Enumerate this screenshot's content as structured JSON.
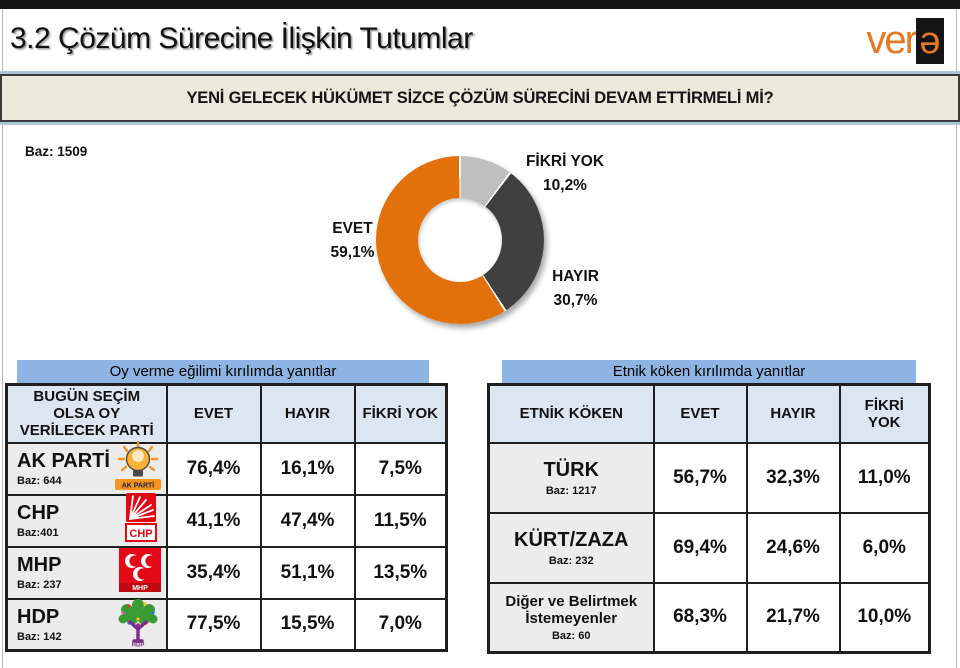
{
  "page": {
    "title": "3.2 Çözüm Sürecine İlişkin Tutumlar",
    "question_header": "YENİ GELECEK HÜKÜMET SİZCE ÇÖZÜM SÜRECİNİ DEVAM ETTİRMELİ Mİ?"
  },
  "logo": {
    "word": "ver",
    "schwa": "ə"
  },
  "colors": {
    "evet_orange": "#e2700b",
    "hayir_dark_gray": "#404040",
    "fikri_yok_light_gray": "#bfbfbf",
    "banner_blue": "#8db4e2",
    "header_cell_blue": "#dce6f1",
    "question_bar_beige": "#eae9db",
    "accent_line_blue": "#a9c7d6",
    "logo_orange": "#e87722"
  },
  "chart_data": [
    {
      "type": "pie",
      "subtype": "donut",
      "title": "YENİ GELECEK HÜKÜMET SİZCE ÇÖZÜM SÜRECİNİ DEVAM ETTİRMELİ Mİ?",
      "base_label": "Baz: 1509",
      "direction": "clockwise",
      "start_angle_deg": 0,
      "hole_ratio": 0.5,
      "slices": [
        {
          "label": "FİKRİ YOK",
          "value": 10.2,
          "display": "10,2%",
          "color": "#bfbfbf"
        },
        {
          "label": "HAYIR",
          "value": 30.7,
          "display": "30,7%",
          "color": "#404040"
        },
        {
          "label": "EVET",
          "value": 59.1,
          "display": "59,1%",
          "color": "#e2700b"
        }
      ]
    },
    {
      "type": "table",
      "banner": "Oy verme eğilimi kırılımda yanıtlar",
      "headers": [
        "BUGÜN SEÇİM OLSA OY VERİLECEK PARTİ",
        "EVET",
        "HAYIR",
        "FİKRİ YOK"
      ],
      "rows": [
        {
          "label": "AK PARTİ",
          "baz": "Baz: 644",
          "logo": "akparti-logo",
          "evet": "76,4%",
          "hayir": "16,1%",
          "fikri_yok": "7,5%"
        },
        {
          "label": "CHP",
          "baz": "Baz:401",
          "logo": "chp-logo",
          "evet": "41,1%",
          "hayir": "47,4%",
          "fikri_yok": "11,5%"
        },
        {
          "label": "MHP",
          "baz": "Baz: 237",
          "logo": "mhp-logo",
          "evet": "35,4%",
          "hayir": "51,1%",
          "fikri_yok": "13,5%"
        },
        {
          "label": "HDP",
          "baz": "Baz: 142",
          "logo": "hdp-logo",
          "evet": "77,5%",
          "hayir": "15,5%",
          "fikri_yok": "7,0%"
        }
      ]
    },
    {
      "type": "table",
      "banner": "Etnik köken  kırılımda yanıtlar",
      "headers": [
        "ETNİK KÖKEN",
        "EVET",
        "HAYIR",
        "FİKRİ YOK"
      ],
      "rows": [
        {
          "label": "TÜRK",
          "baz": "Baz: 1217",
          "evet": "56,7%",
          "hayir": "32,3%",
          "fikri_yok": "11,0%"
        },
        {
          "label": "KÜRT/ZAZA",
          "baz": "Baz: 232",
          "evet": "69,4%",
          "hayir": "24,6%",
          "fikri_yok": "6,0%"
        },
        {
          "label": "Diğer ve Belirtmek İstemeyenler",
          "baz": "Baz: 60",
          "evet": "68,3%",
          "hayir": "21,7%",
          "fikri_yok": "10,0%"
        }
      ]
    }
  ]
}
